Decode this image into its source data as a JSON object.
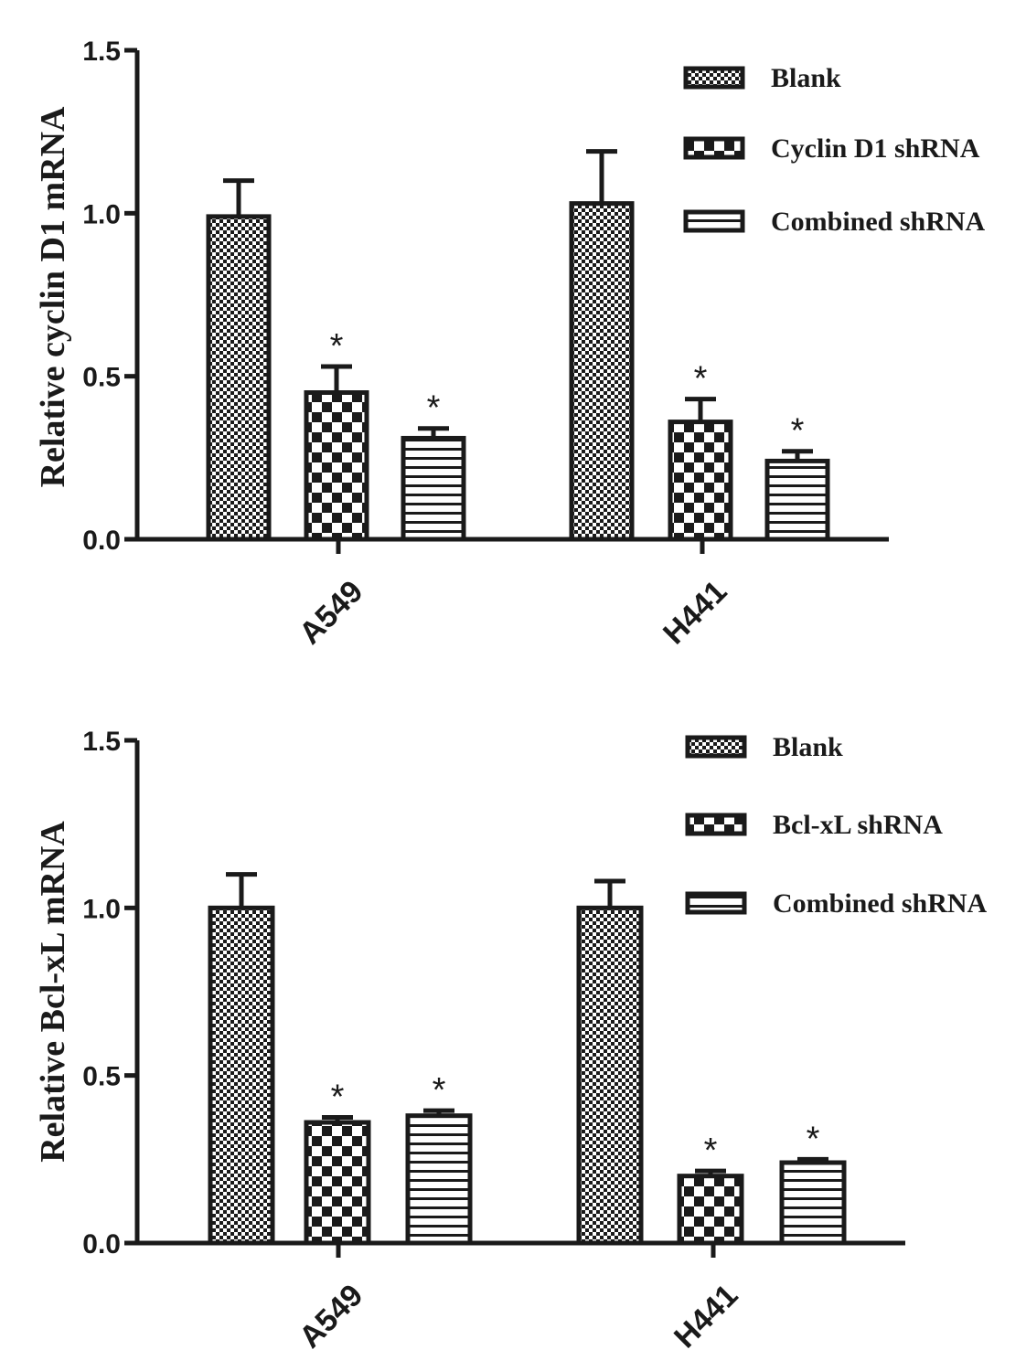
{
  "chart_data": [
    {
      "type": "bar",
      "title": "",
      "xlabel": "",
      "ylabel": "Relative cyclin D1 mRNA",
      "ylim": [
        0,
        1.5
      ],
      "yticks": [
        "0.0",
        "0.5",
        "1.0",
        "1.5"
      ],
      "categories": [
        "A549",
        "H441"
      ],
      "legend_position": "top-right",
      "series": [
        {
          "name": "Blank",
          "pattern": "fine-check",
          "values": [
            0.99,
            1.03
          ],
          "errors": [
            0.11,
            0.16
          ],
          "significant": [
            false,
            false
          ]
        },
        {
          "name": "Cyclin D1 shRNA",
          "pattern": "coarse-check",
          "values": [
            0.45,
            0.36
          ],
          "errors": [
            0.08,
            0.07
          ],
          "significant": [
            true,
            true
          ]
        },
        {
          "name": "Combined shRNA",
          "pattern": "horizontal-lines",
          "values": [
            0.31,
            0.24
          ],
          "errors": [
            0.03,
            0.03
          ],
          "significant": [
            true,
            true
          ]
        }
      ],
      "significance_marker": "*"
    },
    {
      "type": "bar",
      "title": "",
      "xlabel": "",
      "ylabel": "Relative  Bcl-xL mRNA",
      "ylim": [
        0,
        1.5
      ],
      "yticks": [
        "0.0",
        "0.5",
        "1.0",
        "1.5"
      ],
      "categories": [
        "A549",
        "H441"
      ],
      "legend_position": "top-right",
      "series": [
        {
          "name": "Blank",
          "pattern": "fine-check",
          "values": [
            1.0,
            1.0
          ],
          "errors": [
            0.1,
            0.08
          ],
          "significant": [
            false,
            false
          ]
        },
        {
          "name": "Bcl-xL shRNA",
          "pattern": "coarse-check",
          "values": [
            0.36,
            0.2
          ],
          "errors": [
            0.015,
            0.015
          ],
          "significant": [
            true,
            true
          ]
        },
        {
          "name": "Combined shRNA",
          "pattern": "horizontal-lines",
          "values": [
            0.38,
            0.24
          ],
          "errors": [
            0.015,
            0.01
          ],
          "significant": [
            true,
            true
          ]
        }
      ],
      "significance_marker": "*"
    }
  ]
}
